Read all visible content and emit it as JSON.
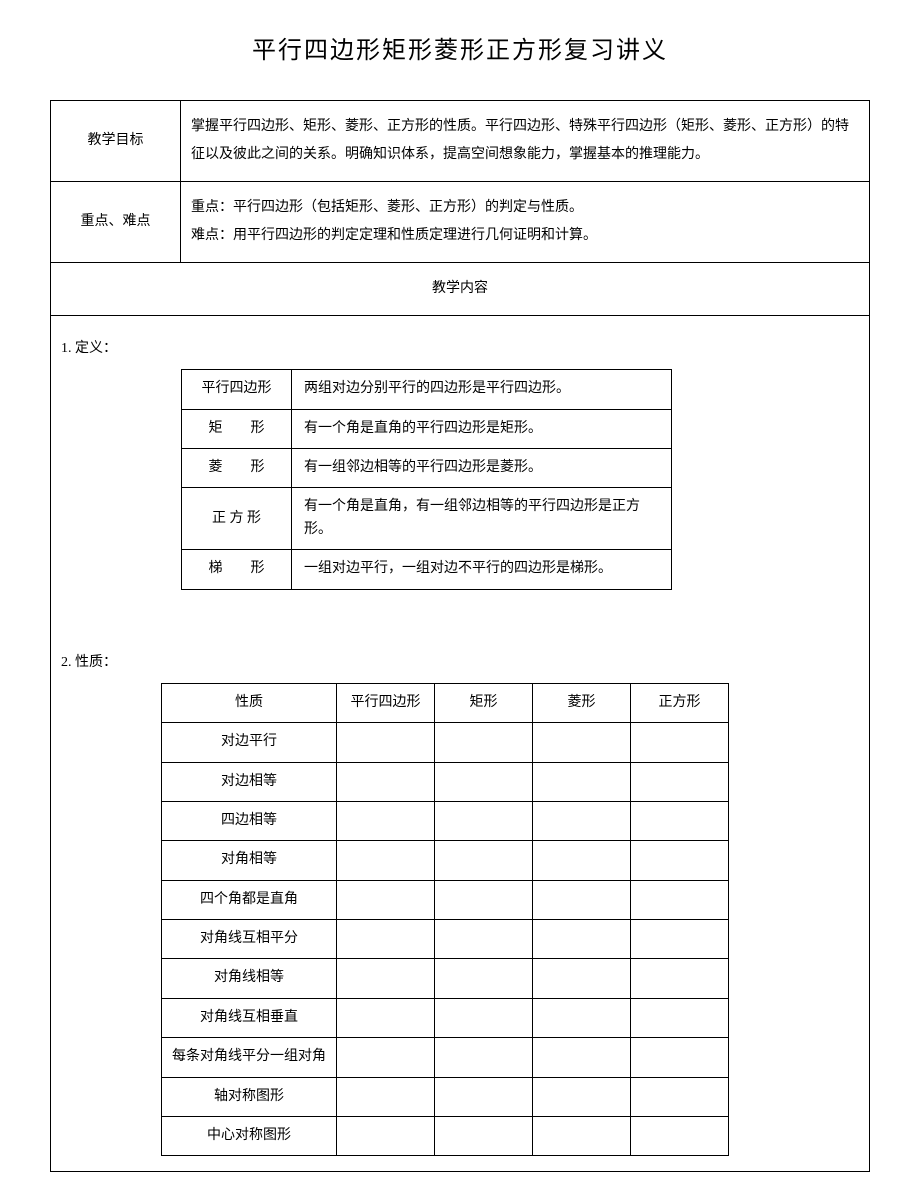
{
  "title": "平行四边形矩形菱形正方形复习讲义",
  "rows": {
    "objective": {
      "label": "教学目标",
      "text": "掌握平行四边形、矩形、菱形、正方形的性质。平行四边形、特殊平行四边形（矩形、菱形、正方形）的特征以及彼此之间的关系。明确知识体系，提高空间想象能力，掌握基本的推理能力。"
    },
    "keypoints": {
      "label": "重点、难点",
      "line1": "重点：平行四边形（包括矩形、菱形、正方形）的判定与性质。",
      "line2": "难点：用平行四边形的判定定理和性质定理进行几何证明和计算。"
    },
    "contentHeader": "教学内容"
  },
  "section1": {
    "heading": "1. 定义：",
    "defs": [
      {
        "label": "平行四边形",
        "desc": "两组对边分别平行的四边形是平行四边形。",
        "spaced": false
      },
      {
        "label": "矩　　形",
        "desc": "有一个角是直角的平行四边形是矩形。",
        "spaced": false
      },
      {
        "label": "菱　　形",
        "desc": "有一组邻边相等的平行四边形是菱形。",
        "spaced": false
      },
      {
        "label": "正 方 形",
        "desc": "有一个角是直角，有一组邻边相等的平行四边形是正方形。",
        "spaced": false
      },
      {
        "label": "梯　　形",
        "desc": "一组对边平行，一组对边不平行的四边形是梯形。",
        "spaced": false
      }
    ]
  },
  "section2": {
    "heading": "2. 性质：",
    "headers": [
      "性质",
      "平行四边形",
      "矩形",
      "菱形",
      "正方形"
    ],
    "props": [
      "对边平行",
      "对边相等",
      "四边相等",
      "对角相等",
      "四个角都是直角",
      "对角线互相平分",
      "对角线相等",
      "对角线互相垂直",
      "每条对角线平分一组对角",
      "轴对称图形",
      "中心对称图形"
    ]
  }
}
